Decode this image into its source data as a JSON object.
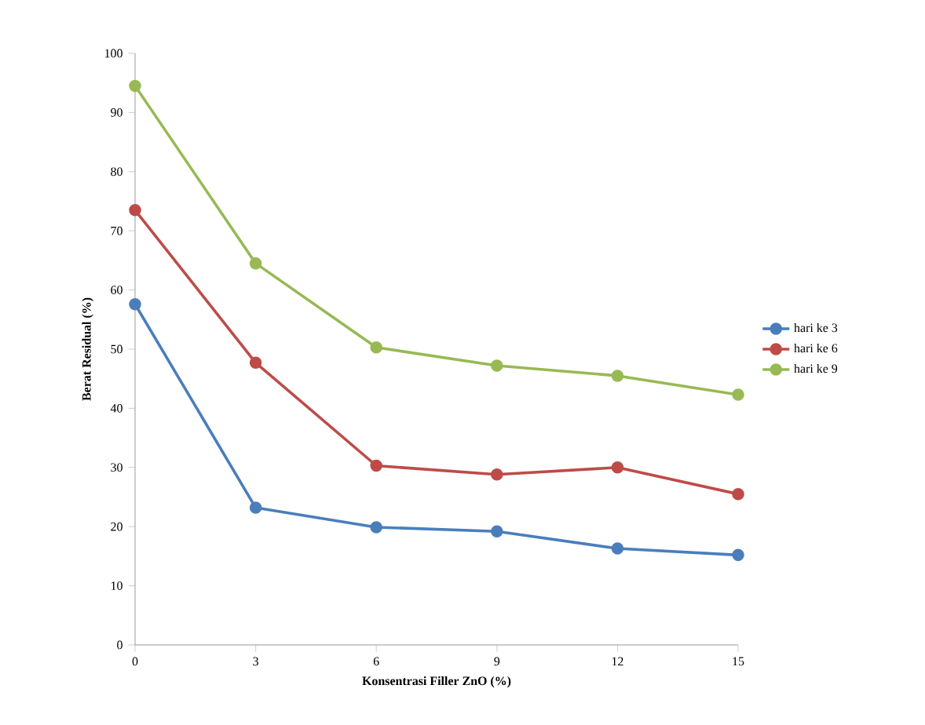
{
  "chart_data": {
    "type": "line",
    "xlabel": "Konsentrasi Filler ZnO (%)",
    "ylabel": "Berat Residual  (%)",
    "x": [
      0,
      3,
      6,
      9,
      12,
      15
    ],
    "series": [
      {
        "name": "hari ke 3",
        "color": "#4a7ebb",
        "values": [
          57.6,
          23.2,
          19.9,
          19.2,
          16.3,
          15.2
        ]
      },
      {
        "name": "hari ke 6",
        "color": "#be4b48",
        "values": [
          73.5,
          47.7,
          30.3,
          28.8,
          30.0,
          25.5
        ]
      },
      {
        "name": "hari ke 9",
        "color": "#98b954",
        "values": [
          94.5,
          64.5,
          50.3,
          47.2,
          45.5,
          42.3
        ]
      }
    ],
    "xlim": [
      0,
      15
    ],
    "xticks": [
      0,
      3,
      6,
      9,
      12,
      15
    ],
    "ylim": [
      0,
      100
    ],
    "yticks": [
      0,
      10,
      20,
      30,
      40,
      50,
      60,
      70,
      80,
      90,
      100
    ],
    "legend": "right",
    "marker": "circle",
    "line_style": "solid",
    "grid": false
  }
}
